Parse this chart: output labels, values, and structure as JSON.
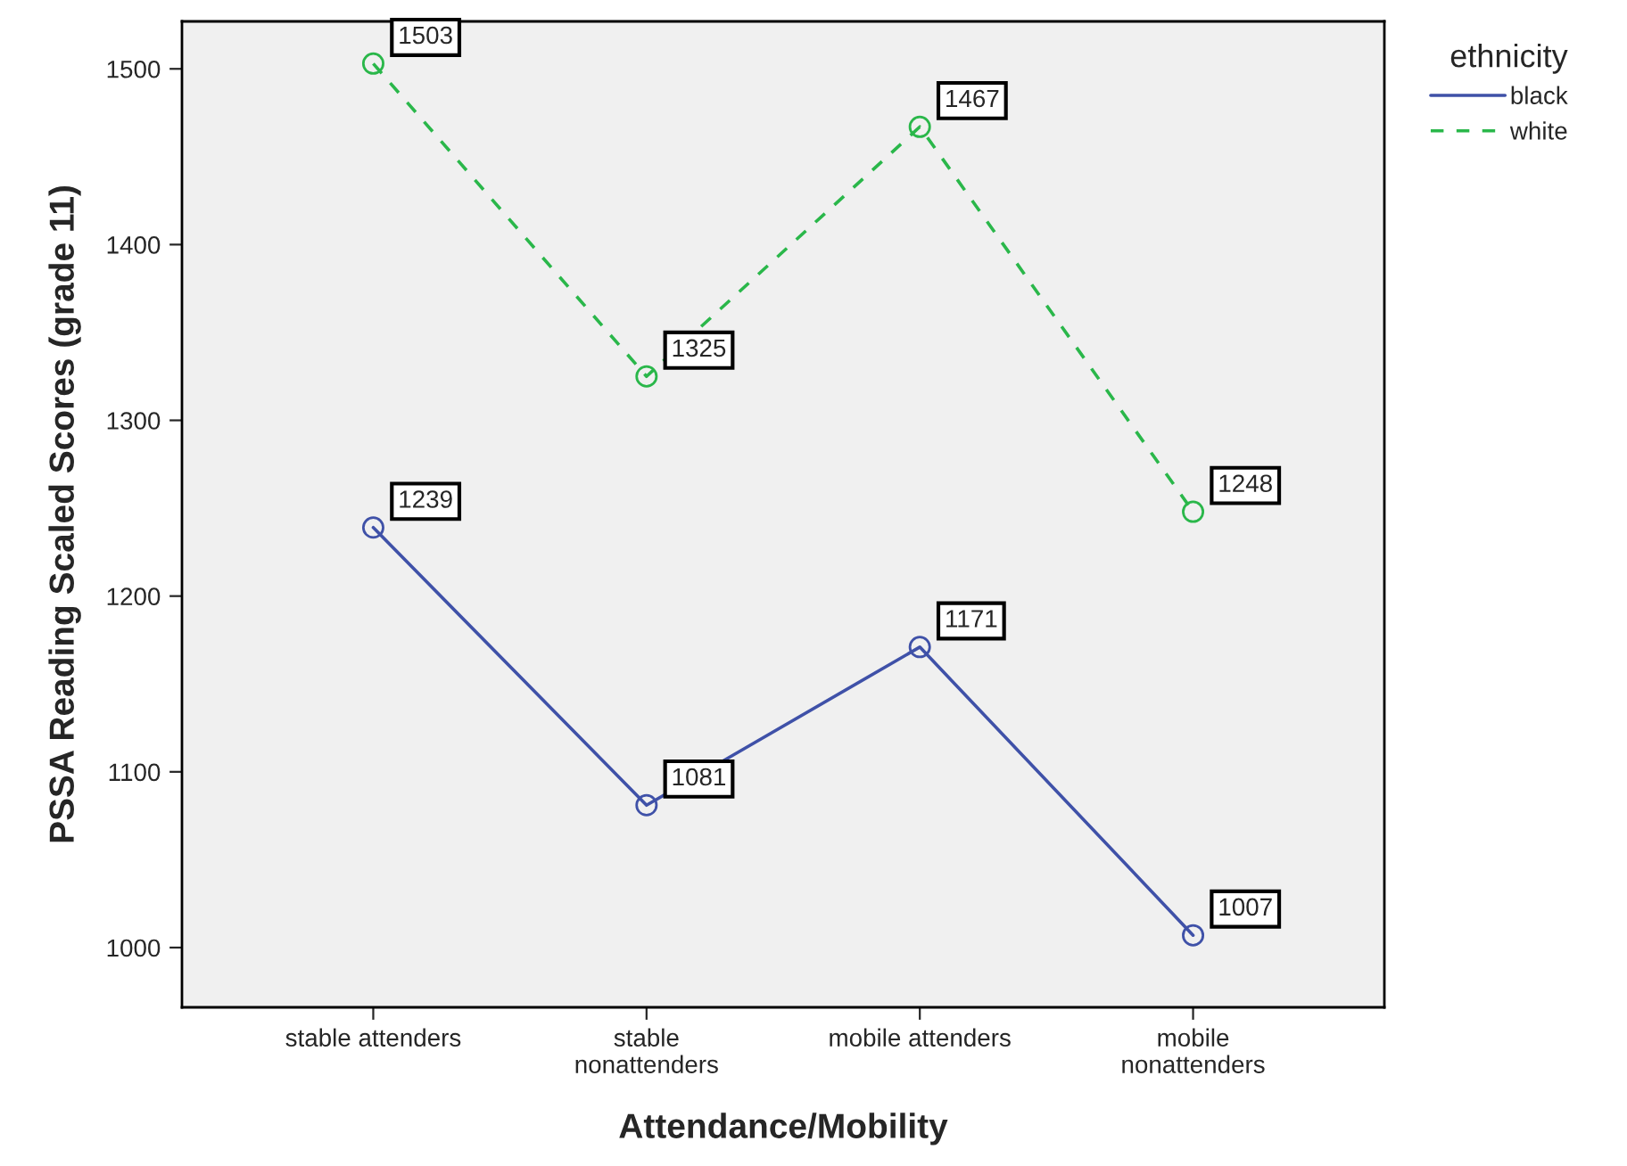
{
  "chart_data": {
    "type": "line",
    "xlabel": "Attendance/Mobility",
    "ylabel": "PSSA Reading Scaled Scores (grade 11)",
    "legend_title": "ethnicity",
    "categories": [
      "stable attenders",
      "stable\nnonattenders",
      "mobile attenders",
      "mobile\nnonattenders"
    ],
    "series": [
      {
        "name": "black",
        "color": "#3f51a8",
        "values": [
          1239,
          1081,
          1171,
          1007
        ],
        "marker": "circle",
        "line_style": "solid"
      },
      {
        "name": "white",
        "color": "#2ab74a",
        "values": [
          1503,
          1325,
          1467,
          1248
        ],
        "marker": "circle",
        "line_style": "dashed"
      }
    ],
    "ylim": [
      966,
      1527
    ],
    "yticks": [
      1000,
      1100,
      1200,
      1300,
      1400,
      1500
    ],
    "data_labels": true,
    "grid": false,
    "legend": "top right"
  }
}
